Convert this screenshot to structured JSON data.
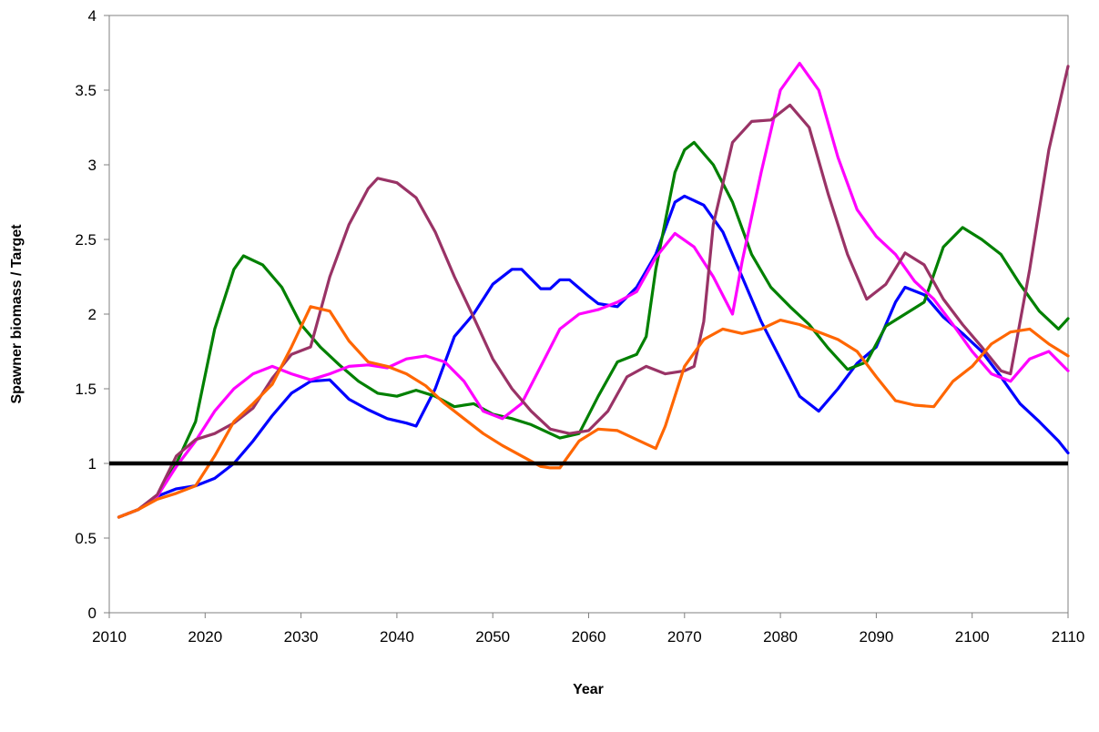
{
  "chart_data": {
    "type": "line",
    "title": "",
    "xlabel": "Year",
    "ylabel": "Spawner biomass / Target",
    "xlim": [
      2010,
      2110
    ],
    "ylim": [
      0,
      4
    ],
    "xticks": [
      "2010",
      "2020",
      "2030",
      "2040",
      "2050",
      "2060",
      "2070",
      "2080",
      "2090",
      "2100",
      "2110"
    ],
    "yticks": [
      "0",
      "0.5",
      "1",
      "1.5",
      "2",
      "2.5",
      "3",
      "3.5",
      "4"
    ],
    "grid": false,
    "legend": "none",
    "reference_line": {
      "y": 1.0,
      "color": "#000000"
    },
    "series": [
      {
        "color": "#0000ff",
        "points": [
          [
            2011,
            0.64
          ],
          [
            2013,
            0.69
          ],
          [
            2015,
            0.78
          ],
          [
            2017,
            0.83
          ],
          [
            2019,
            0.85
          ],
          [
            2021,
            0.9
          ],
          [
            2023,
            1.0
          ],
          [
            2025,
            1.15
          ],
          [
            2027,
            1.32
          ],
          [
            2029,
            1.47
          ],
          [
            2031,
            1.55
          ],
          [
            2033,
            1.56
          ],
          [
            2035,
            1.43
          ],
          [
            2037,
            1.36
          ],
          [
            2039,
            1.3
          ],
          [
            2041,
            1.27
          ],
          [
            2042,
            1.25
          ],
          [
            2044,
            1.5
          ],
          [
            2046,
            1.85
          ],
          [
            2048,
            2.0
          ],
          [
            2050,
            2.2
          ],
          [
            2052,
            2.3
          ],
          [
            2053,
            2.3
          ],
          [
            2055,
            2.17
          ],
          [
            2056,
            2.17
          ],
          [
            2057,
            2.23
          ],
          [
            2058,
            2.23
          ],
          [
            2060,
            2.12
          ],
          [
            2061,
            2.07
          ],
          [
            2063,
            2.05
          ],
          [
            2065,
            2.18
          ],
          [
            2067,
            2.4
          ],
          [
            2069,
            2.75
          ],
          [
            2070,
            2.79
          ],
          [
            2072,
            2.73
          ],
          [
            2074,
            2.55
          ],
          [
            2076,
            2.25
          ],
          [
            2078,
            1.95
          ],
          [
            2080,
            1.7
          ],
          [
            2082,
            1.45
          ],
          [
            2084,
            1.35
          ],
          [
            2086,
            1.5
          ],
          [
            2088,
            1.67
          ],
          [
            2090,
            1.78
          ],
          [
            2092,
            2.08
          ],
          [
            2093,
            2.18
          ],
          [
            2095,
            2.13
          ],
          [
            2097,
            1.98
          ],
          [
            2099,
            1.87
          ],
          [
            2101,
            1.75
          ],
          [
            2103,
            1.58
          ],
          [
            2105,
            1.4
          ],
          [
            2107,
            1.28
          ],
          [
            2109,
            1.15
          ],
          [
            2110,
            1.07
          ]
        ]
      },
      {
        "color": "#008000",
        "points": [
          [
            2011,
            0.64
          ],
          [
            2013,
            0.69
          ],
          [
            2015,
            0.78
          ],
          [
            2017,
            1.0
          ],
          [
            2019,
            1.28
          ],
          [
            2021,
            1.9
          ],
          [
            2023,
            2.3
          ],
          [
            2024,
            2.39
          ],
          [
            2026,
            2.33
          ],
          [
            2028,
            2.18
          ],
          [
            2030,
            1.93
          ],
          [
            2032,
            1.78
          ],
          [
            2034,
            1.66
          ],
          [
            2036,
            1.55
          ],
          [
            2038,
            1.47
          ],
          [
            2040,
            1.45
          ],
          [
            2042,
            1.49
          ],
          [
            2044,
            1.45
          ],
          [
            2046,
            1.38
          ],
          [
            2048,
            1.4
          ],
          [
            2050,
            1.33
          ],
          [
            2052,
            1.3
          ],
          [
            2054,
            1.26
          ],
          [
            2056,
            1.2
          ],
          [
            2057,
            1.17
          ],
          [
            2059,
            1.2
          ],
          [
            2061,
            1.45
          ],
          [
            2063,
            1.68
          ],
          [
            2065,
            1.73
          ],
          [
            2066,
            1.85
          ],
          [
            2067,
            2.3
          ],
          [
            2069,
            2.95
          ],
          [
            2070,
            3.1
          ],
          [
            2071,
            3.15
          ],
          [
            2073,
            3.0
          ],
          [
            2075,
            2.75
          ],
          [
            2077,
            2.4
          ],
          [
            2079,
            2.18
          ],
          [
            2081,
            2.05
          ],
          [
            2083,
            1.93
          ],
          [
            2085,
            1.77
          ],
          [
            2087,
            1.63
          ],
          [
            2089,
            1.68
          ],
          [
            2091,
            1.92
          ],
          [
            2093,
            2.0
          ],
          [
            2095,
            2.08
          ],
          [
            2097,
            2.45
          ],
          [
            2099,
            2.58
          ],
          [
            2101,
            2.5
          ],
          [
            2103,
            2.4
          ],
          [
            2105,
            2.2
          ],
          [
            2107,
            2.02
          ],
          [
            2109,
            1.9
          ],
          [
            2110,
            1.97
          ]
        ]
      },
      {
        "color": "#ff00ff",
        "points": [
          [
            2011,
            0.64
          ],
          [
            2013,
            0.69
          ],
          [
            2015,
            0.78
          ],
          [
            2017,
            0.98
          ],
          [
            2019,
            1.15
          ],
          [
            2021,
            1.35
          ],
          [
            2023,
            1.5
          ],
          [
            2025,
            1.6
          ],
          [
            2027,
            1.65
          ],
          [
            2029,
            1.6
          ],
          [
            2031,
            1.56
          ],
          [
            2033,
            1.6
          ],
          [
            2035,
            1.65
          ],
          [
            2037,
            1.66
          ],
          [
            2039,
            1.64
          ],
          [
            2041,
            1.7
          ],
          [
            2043,
            1.72
          ],
          [
            2045,
            1.68
          ],
          [
            2047,
            1.55
          ],
          [
            2049,
            1.35
          ],
          [
            2051,
            1.3
          ],
          [
            2053,
            1.4
          ],
          [
            2055,
            1.65
          ],
          [
            2057,
            1.9
          ],
          [
            2059,
            2.0
          ],
          [
            2061,
            2.03
          ],
          [
            2063,
            2.08
          ],
          [
            2065,
            2.15
          ],
          [
            2067,
            2.38
          ],
          [
            2069,
            2.54
          ],
          [
            2071,
            2.45
          ],
          [
            2073,
            2.25
          ],
          [
            2075,
            2.0
          ],
          [
            2076,
            2.35
          ],
          [
            2078,
            2.95
          ],
          [
            2080,
            3.5
          ],
          [
            2082,
            3.68
          ],
          [
            2084,
            3.5
          ],
          [
            2086,
            3.05
          ],
          [
            2088,
            2.7
          ],
          [
            2090,
            2.52
          ],
          [
            2092,
            2.4
          ],
          [
            2094,
            2.22
          ],
          [
            2096,
            2.1
          ],
          [
            2098,
            1.93
          ],
          [
            2100,
            1.75
          ],
          [
            2102,
            1.6
          ],
          [
            2104,
            1.55
          ],
          [
            2106,
            1.7
          ],
          [
            2108,
            1.75
          ],
          [
            2110,
            1.62
          ]
        ]
      },
      {
        "color": "#993366",
        "points": [
          [
            2011,
            0.64
          ],
          [
            2013,
            0.69
          ],
          [
            2015,
            0.79
          ],
          [
            2017,
            1.05
          ],
          [
            2019,
            1.16
          ],
          [
            2021,
            1.2
          ],
          [
            2023,
            1.27
          ],
          [
            2025,
            1.37
          ],
          [
            2027,
            1.57
          ],
          [
            2029,
            1.73
          ],
          [
            2031,
            1.78
          ],
          [
            2033,
            2.25
          ],
          [
            2035,
            2.6
          ],
          [
            2037,
            2.84
          ],
          [
            2038,
            2.91
          ],
          [
            2040,
            2.88
          ],
          [
            2042,
            2.78
          ],
          [
            2044,
            2.55
          ],
          [
            2046,
            2.25
          ],
          [
            2048,
            1.98
          ],
          [
            2050,
            1.7
          ],
          [
            2052,
            1.5
          ],
          [
            2054,
            1.35
          ],
          [
            2056,
            1.23
          ],
          [
            2058,
            1.2
          ],
          [
            2060,
            1.22
          ],
          [
            2062,
            1.35
          ],
          [
            2064,
            1.58
          ],
          [
            2066,
            1.65
          ],
          [
            2068,
            1.6
          ],
          [
            2070,
            1.62
          ],
          [
            2071,
            1.65
          ],
          [
            2072,
            1.95
          ],
          [
            2073,
            2.6
          ],
          [
            2075,
            3.15
          ],
          [
            2077,
            3.29
          ],
          [
            2079,
            3.3
          ],
          [
            2081,
            3.4
          ],
          [
            2083,
            3.25
          ],
          [
            2085,
            2.8
          ],
          [
            2087,
            2.4
          ],
          [
            2089,
            2.1
          ],
          [
            2091,
            2.2
          ],
          [
            2093,
            2.41
          ],
          [
            2095,
            2.33
          ],
          [
            2097,
            2.1
          ],
          [
            2099,
            1.93
          ],
          [
            2101,
            1.78
          ],
          [
            2103,
            1.62
          ],
          [
            2104,
            1.6
          ],
          [
            2106,
            2.3
          ],
          [
            2108,
            3.1
          ],
          [
            2110,
            3.66
          ]
        ]
      },
      {
        "color": "#ff6600",
        "points": [
          [
            2011,
            0.64
          ],
          [
            2013,
            0.69
          ],
          [
            2015,
            0.76
          ],
          [
            2017,
            0.8
          ],
          [
            2019,
            0.85
          ],
          [
            2021,
            1.05
          ],
          [
            2023,
            1.28
          ],
          [
            2025,
            1.4
          ],
          [
            2027,
            1.53
          ],
          [
            2029,
            1.78
          ],
          [
            2031,
            2.05
          ],
          [
            2033,
            2.02
          ],
          [
            2035,
            1.82
          ],
          [
            2037,
            1.68
          ],
          [
            2039,
            1.65
          ],
          [
            2041,
            1.6
          ],
          [
            2043,
            1.52
          ],
          [
            2045,
            1.4
          ],
          [
            2047,
            1.3
          ],
          [
            2049,
            1.2
          ],
          [
            2051,
            1.12
          ],
          [
            2053,
            1.05
          ],
          [
            2055,
            0.98
          ],
          [
            2056,
            0.97
          ],
          [
            2057,
            0.97
          ],
          [
            2059,
            1.15
          ],
          [
            2061,
            1.23
          ],
          [
            2063,
            1.22
          ],
          [
            2065,
            1.16
          ],
          [
            2067,
            1.1
          ],
          [
            2068,
            1.25
          ],
          [
            2070,
            1.65
          ],
          [
            2072,
            1.83
          ],
          [
            2074,
            1.9
          ],
          [
            2076,
            1.87
          ],
          [
            2078,
            1.9
          ],
          [
            2080,
            1.96
          ],
          [
            2082,
            1.93
          ],
          [
            2084,
            1.88
          ],
          [
            2086,
            1.83
          ],
          [
            2088,
            1.75
          ],
          [
            2090,
            1.58
          ],
          [
            2092,
            1.42
          ],
          [
            2094,
            1.39
          ],
          [
            2096,
            1.38
          ],
          [
            2098,
            1.55
          ],
          [
            2100,
            1.65
          ],
          [
            2102,
            1.8
          ],
          [
            2104,
            1.88
          ],
          [
            2106,
            1.9
          ],
          [
            2108,
            1.8
          ],
          [
            2110,
            1.72
          ]
        ]
      }
    ]
  }
}
